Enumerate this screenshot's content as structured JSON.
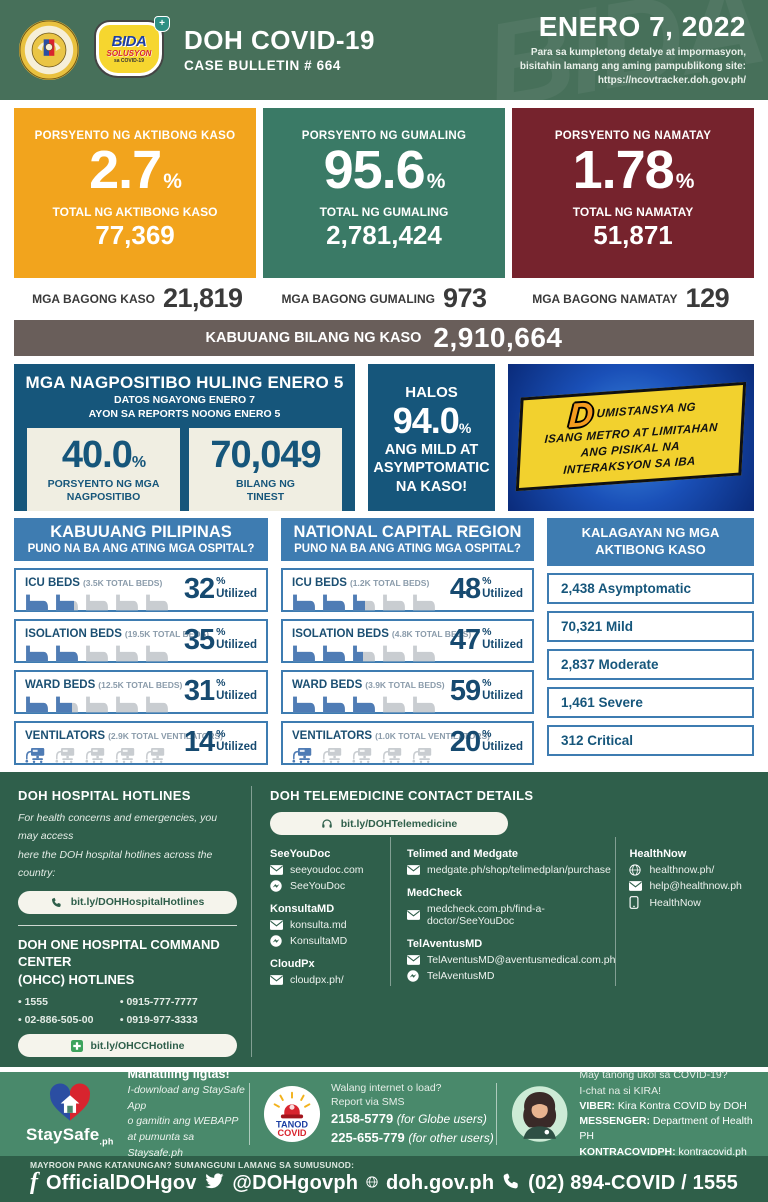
{
  "header": {
    "title": "DOH COVID-19",
    "subtitle": "CASE BULLETIN # 664",
    "date": "ENERO 7, 2022",
    "note1": "Para sa kumpletong detalye at impormasyon,",
    "note2": "bisitahin lamang ang aming pampublikong site:",
    "note3": "https://ncovtracker.doh.gov.ph/",
    "bida": {
      "top": "BIDA",
      "mid": "SOLUSYON",
      "bottom": "sa COVID-19",
      "shield": "+"
    },
    "watermark": "BIDA!"
  },
  "summary_boxes": [
    {
      "percent_label": "PORSYENTO NG AKTIBONG KASO",
      "percent": "2.7",
      "total_label": "TOTAL NG AKTIBONG KASO",
      "total": "77,369",
      "color": "#F2A41D"
    },
    {
      "percent_label": "PORSYENTO NG GUMALING",
      "percent": "95.6",
      "total_label": "TOTAL NG GUMALING",
      "total": "2,781,424",
      "color": "#3A7A66"
    },
    {
      "percent_label": "PORSYENTO NG NAMATAY",
      "percent": "1.78",
      "total_label": "TOTAL NG NAMATAY",
      "total": "51,871",
      "color": "#76232D"
    }
  ],
  "new_counts": [
    {
      "label": "MGA BAGONG KASO",
      "value": "21,819"
    },
    {
      "label": "MGA BAGONG GUMALING",
      "value": "973"
    },
    {
      "label": "MGA BAGONG NAMATAY",
      "value": "129"
    }
  ],
  "total_bar": {
    "label": "KABUUANG BILANG NG KASO",
    "value": "2,910,664"
  },
  "positivity": {
    "title": "MGA NAGPOSITIBO HULING ENERO 5",
    "sub1": "DATOS NGAYONG ENERO 7",
    "sub2": "AYON SA REPORTS NOONG ENERO 5",
    "rate": "40.0",
    "rate_unit": "%",
    "rate_label1": "PORSYENTO NG MGA",
    "rate_label2": "NAGPOSITIBO",
    "tested": "70,049",
    "tested_label1": "BILANG NG",
    "tested_label2": "TINEST"
  },
  "mild": {
    "pre": "HALOS",
    "percent": "94.0",
    "unit": "%",
    "line1": "ANG MILD AT",
    "line2": "ASYMPTOMATIC",
    "line3": "NA KASO!"
  },
  "advisory": {
    "lead": "D",
    "line1": "UMISTANSYA NG",
    "line2": "ISANG METRO AT LIMITAHAN",
    "line3": "ANG PISIKAL NA",
    "line4": "INTERAKSYON SA IBA"
  },
  "hospitals": {
    "utilized_label": "Utilized",
    "percent_sign": "%",
    "columns": [
      {
        "title": "KABUUANG PILIPINAS",
        "question": "PUNO NA BA ANG ATING MGA OSPITAL?",
        "rows": [
          {
            "name": "ICU BEDS",
            "capacity": "(3.5K TOTAL BEDS)",
            "percent": 32,
            "icon": "bed"
          },
          {
            "name": "ISOLATION BEDS",
            "capacity": "(19.5K TOTAL BEDS)",
            "percent": 35,
            "icon": "bed"
          },
          {
            "name": "WARD BEDS",
            "capacity": "(12.5K TOTAL BEDS)",
            "percent": 31,
            "icon": "bed"
          },
          {
            "name": "VENTILATORS",
            "capacity": "(2.9K TOTAL VENTILATORS)",
            "percent": 14,
            "icon": "ventilator"
          }
        ]
      },
      {
        "title": "NATIONAL CAPITAL REGION",
        "question": "PUNO NA BA ANG ATING MGA OSPITAL?",
        "rows": [
          {
            "name": "ICU BEDS",
            "capacity": "(1.2K TOTAL BEDS)",
            "percent": 48,
            "icon": "bed"
          },
          {
            "name": "ISOLATION BEDS",
            "capacity": "(4.8K TOTAL BEDS)",
            "percent": 47,
            "icon": "bed"
          },
          {
            "name": "WARD BEDS",
            "capacity": "(3.9K TOTAL BEDS)",
            "percent": 59,
            "icon": "bed"
          },
          {
            "name": "VENTILATORS",
            "capacity": "(1.0K TOTAL VENTILATORS)",
            "percent": 20,
            "icon": "ventilator"
          }
        ]
      }
    ]
  },
  "active_status": {
    "title1": "KALAGAYAN NG MGA",
    "title2": "AKTIBONG KASO",
    "items": [
      "2,438 Asymptomatic",
      "70,321 Mild",
      "2,837 Moderate",
      "1,461 Severe",
      "312 Critical"
    ]
  },
  "hotlines": {
    "title": "DOH HOSPITAL HOTLINES",
    "desc1": "For health concerns and emergencies, you may access",
    "desc2": "here the DOH hospital hotlines across the country:",
    "link1": "bit.ly/DOHHospitalHotlines",
    "ohcc_title1": "DOH ONE HOSPITAL COMMAND CENTER",
    "ohcc_title2": "(OHCC) HOTLINES",
    "numbers": [
      "1555",
      "02-886-505-00",
      "0915-777-7777",
      "0919-977-3333"
    ],
    "link2": "bit.ly/OHCCHotline"
  },
  "telemedicine": {
    "title": "DOH TELEMEDICINE CONTACT DETAILS",
    "link": "bit.ly/DOHTelemedicine",
    "columns": [
      {
        "groups": [
          {
            "name": "SeeYouDoc",
            "contacts": [
              {
                "icon": "mail",
                "text": "seeyoudoc.com"
              },
              {
                "icon": "messenger",
                "text": "SeeYouDoc"
              }
            ]
          },
          {
            "name": "KonsultaMD",
            "contacts": [
              {
                "icon": "mail",
                "text": "konsulta.md"
              },
              {
                "icon": "messenger",
                "text": "KonsultaMD"
              }
            ]
          },
          {
            "name": "CloudPx",
            "contacts": [
              {
                "icon": "mail",
                "text": "cloudpx.ph/"
              }
            ]
          }
        ]
      },
      {
        "groups": [
          {
            "name": "Telimed and Medgate",
            "contacts": [
              {
                "icon": "mail",
                "text": "medgate.ph/shop/telimedplan/purchase"
              }
            ]
          },
          {
            "name": "MedCheck",
            "contacts": [
              {
                "icon": "mail",
                "text": "medcheck.com.ph/find-a-doctor/SeeYouDoc"
              }
            ]
          },
          {
            "name": "TelAventusMD",
            "contacts": [
              {
                "icon": "mail",
                "text": "TelAventusMD@aventusmedical.com.ph"
              },
              {
                "icon": "messenger",
                "text": "TelAventusMD"
              }
            ]
          }
        ]
      },
      {
        "groups": [
          {
            "name": "HealthNow",
            "contacts": [
              {
                "icon": "globe",
                "text": "healthnow.ph/"
              },
              {
                "icon": "mail",
                "text": "help@healthnow.ph"
              },
              {
                "icon": "mobile",
                "text": "HealthNow"
              }
            ]
          }
        ]
      }
    ]
  },
  "staysafe": {
    "brand": "StaySafe",
    "brand_suffix": ".ph",
    "headline": "Manatiling ligtas!",
    "line1": "I-download ang StaySafe App",
    "line2": "o gamitin ang WEBAPP",
    "line3": "at pumunta sa Staysafe.ph"
  },
  "tanod": {
    "logo1": "TANOD",
    "logo2": "COVID",
    "line1": "Walang internet o load?",
    "line2": "Report via SMS",
    "sms1": "2158-5779",
    "sms1_note": "(for Globe users)",
    "sms2": "225-655-779",
    "sms2_note": "(for other users)"
  },
  "kira": {
    "line1": "May tanong ukol sa COVID-19?",
    "line2": "I-chat na si KIRA!",
    "rows": [
      {
        "label": "VIBER:",
        "value": "Kira Kontra COVID by DOH"
      },
      {
        "label": "MESSENGER:",
        "value": "Department of Health PH"
      },
      {
        "label": "KONTRACOVIDPH:",
        "value": "kontracovid.ph"
      }
    ]
  },
  "bottom": {
    "note": "MAYROON PANG KATANUNGAN? SUMANGGUNI LAMANG SA SUMUSUNOD:",
    "links": [
      {
        "icon": "facebook",
        "text": "OfficialDOHgov"
      },
      {
        "icon": "twitter",
        "text": "@DOHgovph"
      },
      {
        "icon": "globe",
        "text": "doh.gov.ph"
      },
      {
        "icon": "phone",
        "text": "(02) 894-COVID / 1555"
      }
    ]
  },
  "colors": {
    "bed_filled": "#4F7CB5",
    "bed_empty": "#C9CDD1",
    "panel_blue": "#16567B",
    "header_blue": "#3E7CB1",
    "dark_green": "#2F5F4B"
  }
}
